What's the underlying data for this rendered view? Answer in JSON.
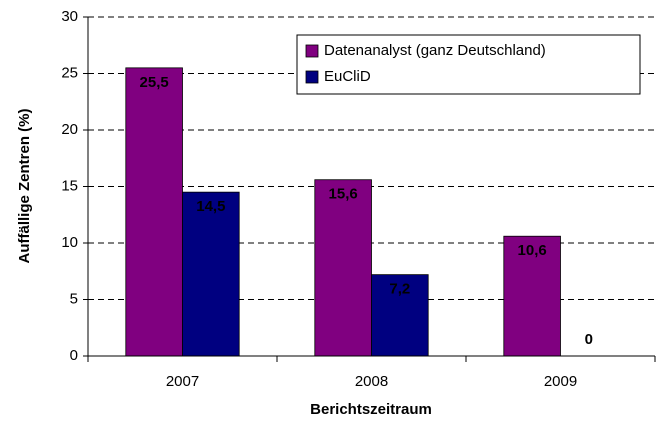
{
  "chart_data": {
    "type": "bar",
    "categories": [
      "2007",
      "2008",
      "2009"
    ],
    "series": [
      {
        "name": "Datenanalyst (ganz Deutschland)",
        "color": "#800080",
        "values": [
          25.5,
          15.6,
          10.6
        ],
        "value_labels": [
          "25,5",
          "15,6",
          "10,6"
        ]
      },
      {
        "name": "EuCliD",
        "color": "#000080",
        "values": [
          14.5,
          7.2,
          0
        ],
        "value_labels": [
          "14,5",
          "7,2",
          "0"
        ]
      }
    ],
    "ylim": [
      0,
      30
    ],
    "yticks": [
      0,
      5,
      10,
      15,
      20,
      25,
      30
    ],
    "ylabel": "Auffällige Zentren (%)",
    "xlabel": "Berichtszeitraum",
    "grid": true,
    "legend": "upper right"
  }
}
